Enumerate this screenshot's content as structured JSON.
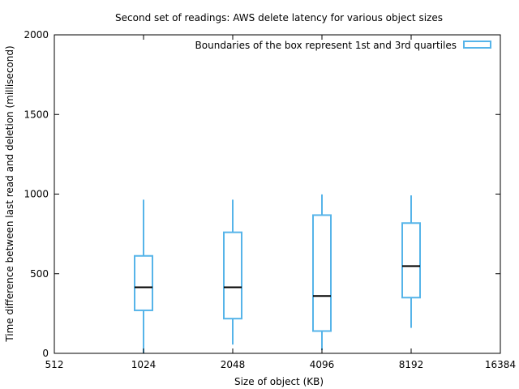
{
  "chart_data": {
    "type": "box",
    "title": "Second set of readings: AWS delete latency for various object sizes",
    "xlabel": "Size of object (KB)",
    "ylabel": "Time difference between last read and deletion (millisecond)",
    "x_scale": "log2",
    "xlim": [
      512,
      16384
    ],
    "ylim": [
      0,
      2000
    ],
    "x_ticks": [
      512,
      1024,
      2048,
      4096,
      8192,
      16384
    ],
    "x_tick_labels": [
      "512",
      "1024",
      "2048",
      "4096",
      "8192",
      "16384"
    ],
    "y_ticks": [
      0,
      500,
      1000,
      1500,
      2000
    ],
    "y_tick_labels": [
      "0",
      "500",
      "1000",
      "1500",
      "2000"
    ],
    "grid": false,
    "legend": {
      "label": "Boundaries of the box represent 1st and 3rd quartiles",
      "position": "top-right"
    },
    "colors": {
      "box": "#56b4e9",
      "median": "#000000",
      "axis": "#000000"
    },
    "boxes": [
      {
        "x": 1024,
        "min": 0,
        "q1": 270,
        "median": 415,
        "q3": 612,
        "max": 965
      },
      {
        "x": 2048,
        "min": 55,
        "q1": 218,
        "median": 415,
        "q3": 760,
        "max": 965
      },
      {
        "x": 4096,
        "min": 20,
        "q1": 140,
        "median": 360,
        "q3": 868,
        "max": 998
      },
      {
        "x": 8192,
        "min": 160,
        "q1": 350,
        "median": 548,
        "q3": 818,
        "max": 992
      }
    ]
  }
}
